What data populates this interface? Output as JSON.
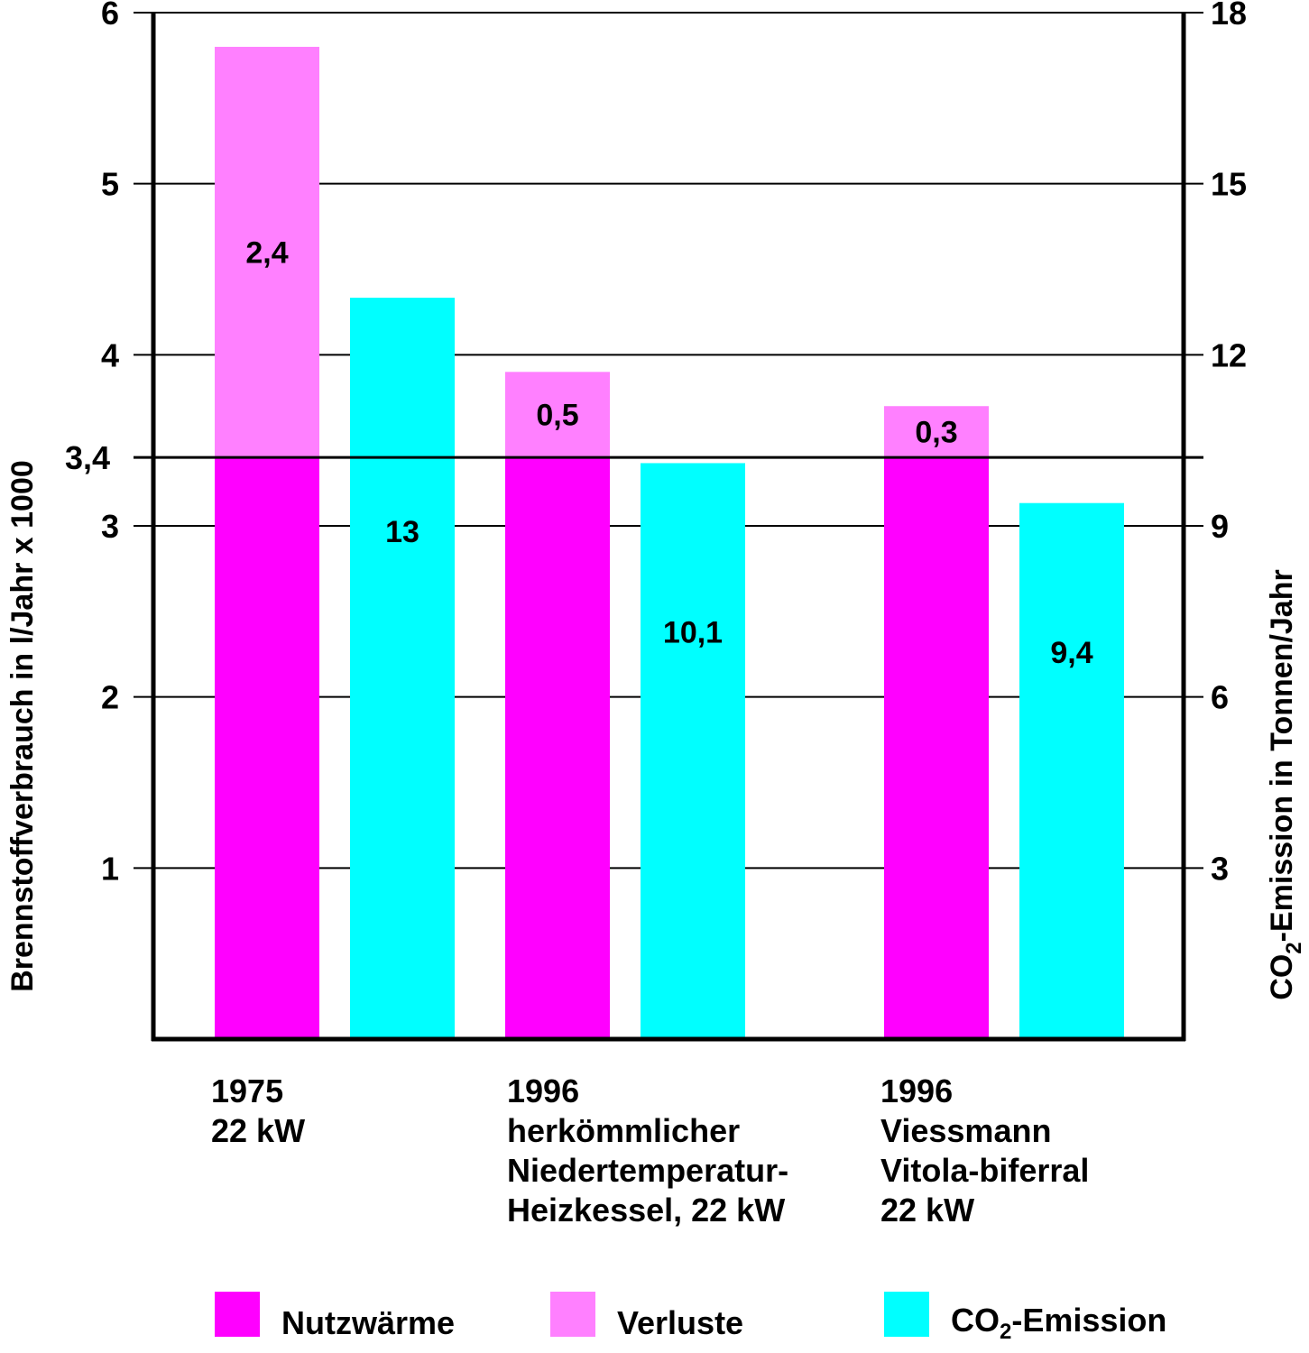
{
  "chart_data": {
    "type": "bar",
    "categories": [
      [
        "1975",
        "22 kW"
      ],
      [
        "1996",
        "herkömmlicher",
        "Niedertemperatur-",
        "Heizkessel, 22 kW"
      ],
      [
        "1996",
        "Viessmann",
        "Vitola-biferral",
        "22 kW"
      ]
    ],
    "left_axis": {
      "label": "Brennstoffverbrauch in l/Jahr x 1000",
      "ylim": [
        0,
        6
      ],
      "ticks": [
        "1",
        "2",
        "3",
        "4",
        "5",
        "6"
      ],
      "extra_tick": "3,4"
    },
    "right_axis": {
      "label_prefix": "CO",
      "label_sub": "2",
      "label_suffix": "-Emission in Tonnen/Jahr",
      "ylim": [
        0,
        18
      ],
      "ticks": [
        "3",
        "6",
        "9",
        "12",
        "15",
        "18"
      ]
    },
    "reference_line": 3.4,
    "series": [
      {
        "name": "Nutzwärme",
        "axis": "left",
        "values": [
          3.4,
          3.4,
          3.4
        ]
      },
      {
        "name": "Verluste",
        "axis": "left",
        "values": [
          2.4,
          0.5,
          0.3
        ],
        "labels": [
          "2,4",
          "0,5",
          "0,3"
        ]
      },
      {
        "name": "CO2-Emission",
        "axis": "right",
        "values": [
          13,
          10.1,
          9.4
        ],
        "labels": [
          "13",
          "10,1",
          "9,4"
        ]
      }
    ],
    "grid": true
  },
  "legend": {
    "nutzwaerme": "Nutzwärme",
    "verluste": "Verluste",
    "co2_prefix": "CO",
    "co2_sub": "2",
    "co2_suffix": "-Emission"
  },
  "colors": {
    "nutzwaerme": "#ff00ff",
    "verluste": "#ff80ff",
    "co2": "#00ffff",
    "axis": "#000000"
  }
}
